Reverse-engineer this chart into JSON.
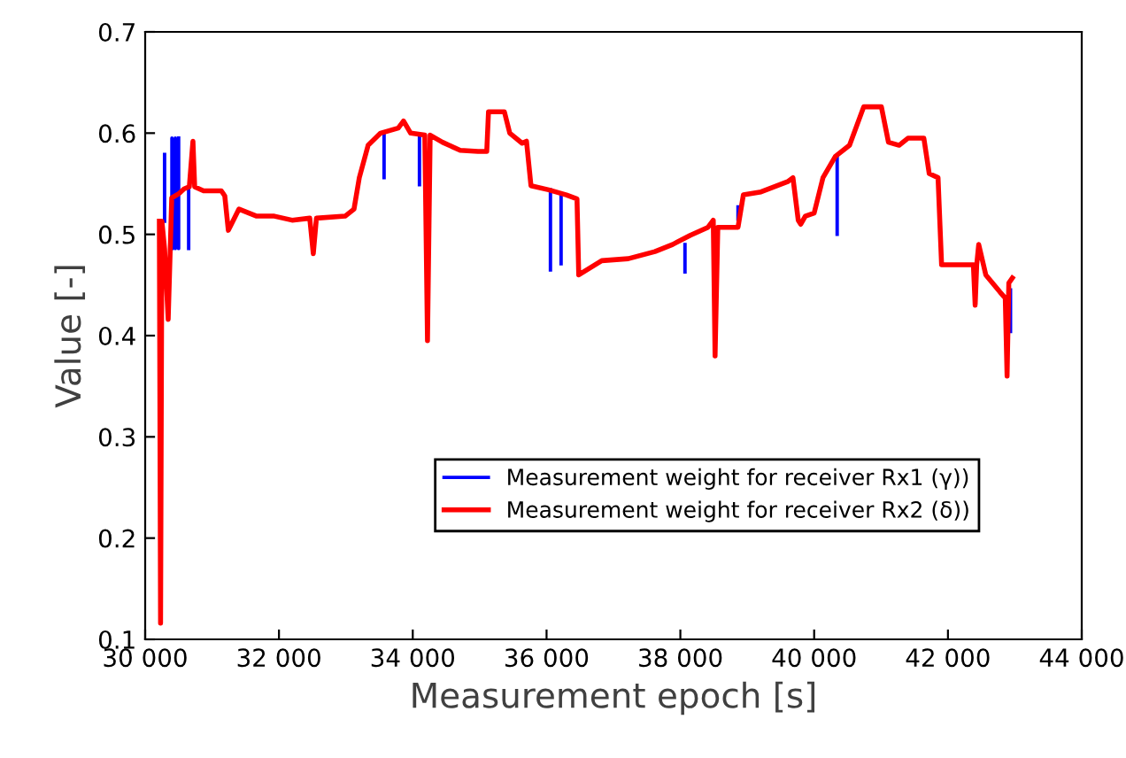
{
  "chart_data": {
    "type": "line",
    "xlabel": "Measurement epoch [s]",
    "ylabel": "Value [-]",
    "xlim": [
      30000,
      44000
    ],
    "ylim": [
      0.1,
      0.7
    ],
    "xticks": [
      {
        "value": 30000,
        "label": "30 000"
      },
      {
        "value": 32000,
        "label": "32 000"
      },
      {
        "value": 34000,
        "label": "34 000"
      },
      {
        "value": 36000,
        "label": "36 000"
      },
      {
        "value": 38000,
        "label": "38 000"
      },
      {
        "value": 40000,
        "label": "40 000"
      },
      {
        "value": 42000,
        "label": "42 000"
      },
      {
        "value": 44000,
        "label": "44 000"
      }
    ],
    "yticks": [
      0.1,
      0.2,
      0.3,
      0.4,
      0.5,
      0.6,
      0.7
    ],
    "grid": false,
    "legend": "bottom",
    "marker": "none",
    "line_style": "solid",
    "series": [
      {
        "name": "Measurement weight for receiver Rx1 (γ))",
        "color": "#0000ff",
        "x": [
          30290,
          30290,
          30291,
          30400,
          30400,
          30450,
          30450,
          30500,
          30500,
          30501,
          30650,
          30650,
          30651,
          33571,
          33571,
          33572,
          34100,
          34100,
          34101,
          36058,
          36058,
          36059,
          36217,
          36217,
          36218,
          38069,
          38069,
          38070,
          38862,
          38862,
          38863,
          40344,
          40344,
          40345,
          42935,
          42935
        ],
        "values": [
          0.513,
          0.579,
          null,
          0.486,
          0.595,
          0.486,
          0.595,
          0.486,
          0.595,
          null,
          0.545,
          0.486,
          null,
          0.6,
          0.556,
          null,
          0.598,
          0.549,
          null,
          0.544,
          0.465,
          null,
          0.54,
          0.471,
          null,
          0.49,
          0.463,
          null,
          0.515,
          0.527,
          null,
          0.577,
          0.5,
          null,
          0.445,
          0.404
        ]
      },
      {
        "name": "Measurement weight for receiver Rx2 (δ))",
        "color": "#ff0000",
        "x": [
          30212,
          30230,
          30250,
          30290,
          30344,
          30397,
          30500,
          30582,
          30660,
          30714,
          30740,
          30873,
          31138,
          31190,
          31243,
          31402,
          31667,
          31931,
          32196,
          32460,
          32513,
          32560,
          32989,
          33122,
          33201,
          33333,
          33519,
          33783,
          33862,
          33968,
          34180,
          34220,
          34260,
          34444,
          34709,
          34975,
          35106,
          35132,
          35370,
          35450,
          35635,
          35700,
          35767,
          36032,
          36296,
          36455,
          36481,
          36825,
          37222,
          37619,
          37884,
          38148,
          38413,
          38492,
          38519,
          38560,
          38862,
          38942,
          39206,
          39603,
          39683,
          39762,
          39800,
          39868,
          40000,
          40132,
          40317,
          40529,
          40741,
          41005,
          41111,
          41270,
          41402,
          41640,
          41720,
          41852,
          41905,
          42249,
          42380,
          42407,
          42430,
          42460,
          42566,
          42778,
          42857,
          42884,
          42910,
          42963
        ],
        "values": [
          0.513,
          0.116,
          0.513,
          0.486,
          0.416,
          0.536,
          0.54,
          0.545,
          0.547,
          0.592,
          0.547,
          0.543,
          0.543,
          0.538,
          0.504,
          0.525,
          0.518,
          0.518,
          0.514,
          0.516,
          0.481,
          0.516,
          0.518,
          0.525,
          0.556,
          0.588,
          0.6,
          0.605,
          0.612,
          0.6,
          0.598,
          0.395,
          0.598,
          0.591,
          0.583,
          0.582,
          0.582,
          0.621,
          0.621,
          0.6,
          0.59,
          0.592,
          0.548,
          0.544,
          0.539,
          0.535,
          0.46,
          0.474,
          0.476,
          0.483,
          0.49,
          0.499,
          0.507,
          0.514,
          0.38,
          0.507,
          0.507,
          0.539,
          0.542,
          0.552,
          0.556,
          0.514,
          0.51,
          0.518,
          0.521,
          0.556,
          0.577,
          0.588,
          0.626,
          0.626,
          0.591,
          0.588,
          0.595,
          0.595,
          0.56,
          0.556,
          0.47,
          0.47,
          0.47,
          0.43,
          0.47,
          0.49,
          0.46,
          0.443,
          0.437,
          0.36,
          0.452,
          0.457
        ]
      }
    ]
  }
}
